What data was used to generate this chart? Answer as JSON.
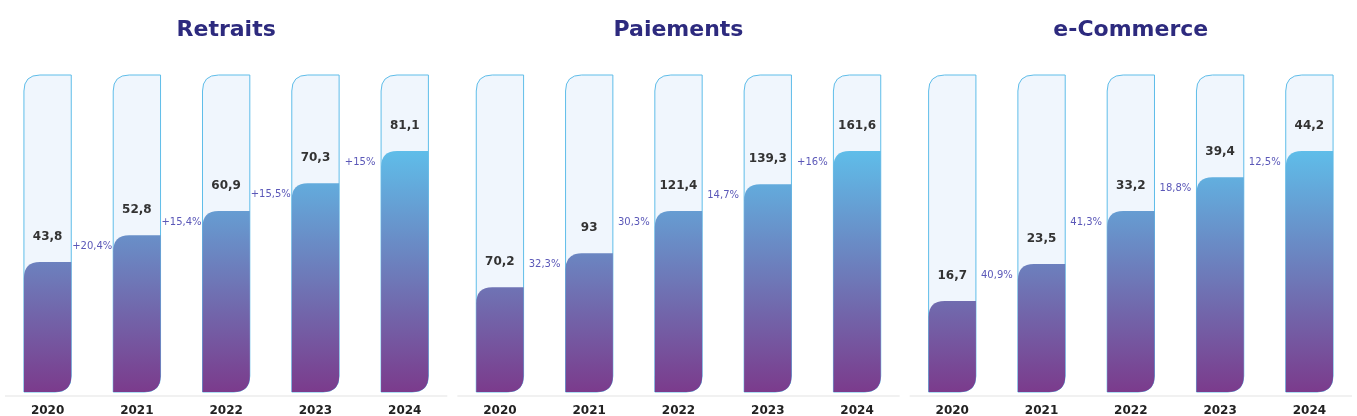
{
  "chart_data": [
    {
      "type": "bar",
      "title": "Retraits",
      "categories": [
        "2020",
        "2021",
        "2022",
        "2023",
        "2024"
      ],
      "values": [
        43.8,
        52.8,
        60.9,
        70.3,
        81.1
      ],
      "value_labels": [
        "43,8",
        "52,8",
        "60,9",
        "70,3",
        "81,1"
      ],
      "color": "#5fbde9",
      "annotations": [
        "+20,4%",
        "+15,4%",
        "+15,5%",
        "+15%"
      ]
    },
    {
      "type": "bar",
      "title": "Paiements",
      "categories": [
        "2020",
        "2021",
        "2022",
        "2023",
        "2024"
      ],
      "values": [
        70.2,
        93,
        121.4,
        139.3,
        161.6
      ],
      "value_labels": [
        "70,2",
        "93",
        "121,4",
        "139,3",
        "161,6"
      ],
      "color": "#5fbde9",
      "annotations": [
        "32,3%",
        "30,3%",
        "14,7%",
        "+16%"
      ]
    },
    {
      "type": "bar",
      "title": "e-Commerce",
      "categories": [
        "2020",
        "2021",
        "2022",
        "2023",
        "2024"
      ],
      "values": [
        16.7,
        23.5,
        33.2,
        39.4,
        44.2
      ],
      "value_labels": [
        "16,7",
        "23,5",
        "33,2",
        "39,4",
        "44,2"
      ],
      "color": "#5fbde9",
      "annotations": [
        "40,9%",
        "41,3%",
        "18,8%",
        "12,5%"
      ]
    }
  ]
}
